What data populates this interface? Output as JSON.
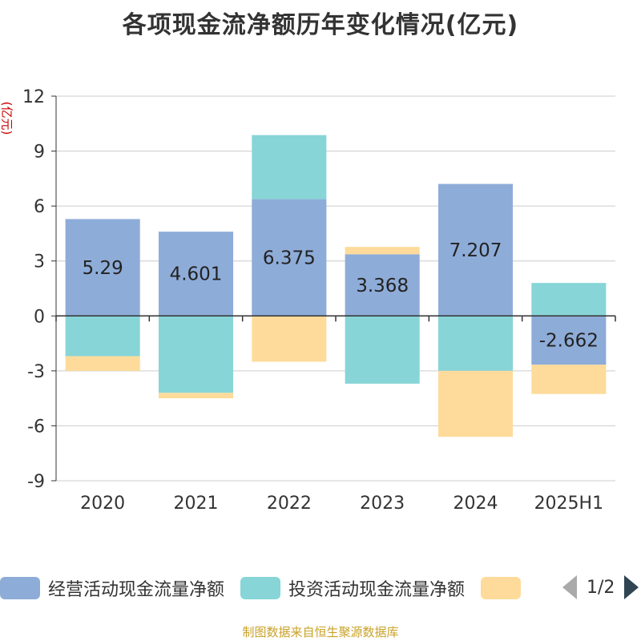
{
  "title": "各项现金流净额历年变化情况(亿元)",
  "yunit": "(亿元)",
  "footer": "制图数据来自恒生聚源数据库",
  "legend": {
    "items": [
      {
        "label": "经营活动现金流量净额",
        "color": "#8eacd8"
      },
      {
        "label": "投资活动现金流量净额",
        "color": "#87d5d7"
      },
      {
        "label": "",
        "color": "#fedb9a"
      }
    ],
    "page": "1/2"
  },
  "chart_data": {
    "type": "bar",
    "stacked": true,
    "categories": [
      "2020",
      "2021",
      "2022",
      "2023",
      "2024",
      "2025H1"
    ],
    "ylim": [
      -9,
      12
    ],
    "yticks": [
      12,
      9,
      6,
      3,
      0,
      -3,
      -6,
      -9
    ],
    "grid": true,
    "legend_position": "bottom",
    "series": [
      {
        "name": "经营活动现金流量净额",
        "color": "#8eacd8",
        "values": [
          5.29,
          4.601,
          6.375,
          3.368,
          7.207,
          -2.662
        ],
        "labels": [
          "5.29",
          "4.601",
          "6.375",
          "3.368",
          "7.207",
          "-2.662"
        ]
      },
      {
        "name": "投资活动现金流量净额",
        "color": "#87d5d7",
        "values": [
          -2.2,
          -4.2,
          3.5,
          -3.7,
          -3.0,
          1.8
        ]
      },
      {
        "color": "#fedb9a",
        "values": [
          -0.8,
          -0.3,
          -2.5,
          0.4,
          -3.6,
          -1.6
        ]
      }
    ]
  }
}
